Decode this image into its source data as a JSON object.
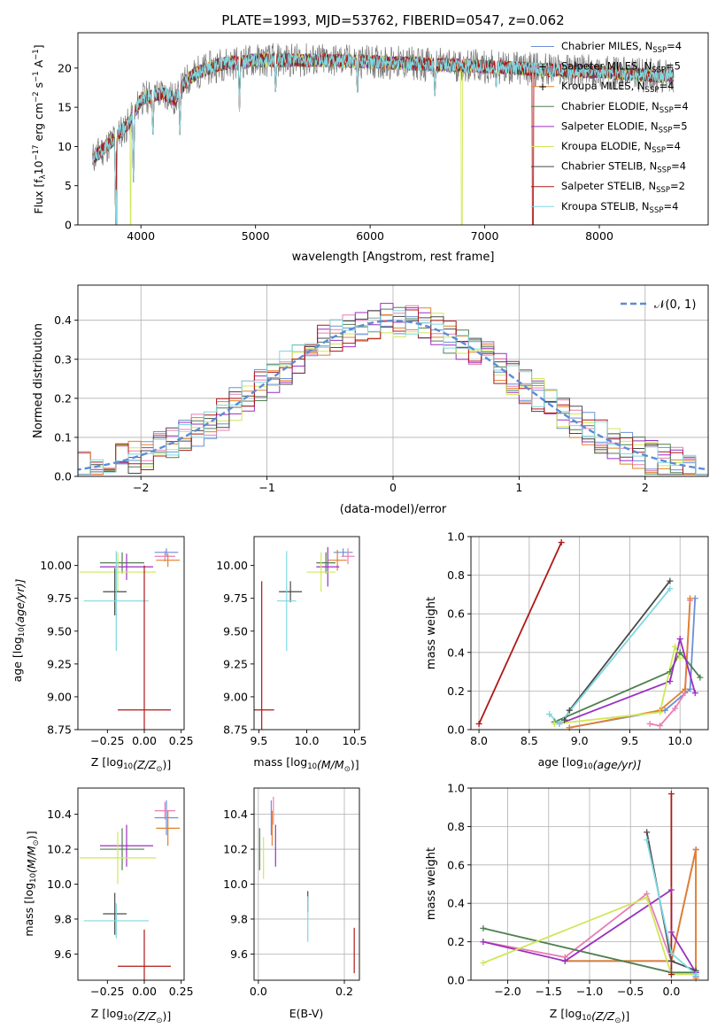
{
  "colors": {
    "chabrier_miles": "#6b8fd6",
    "salpeter_miles": "#e87eb5",
    "kroupa_miles": "#e0802e",
    "chabrier_elodie": "#4f7f4f",
    "salpeter_elodie": "#9b2fbf",
    "kroupa_elodie": "#cfe85a",
    "chabrier_stelib": "#4a4a4a",
    "salpeter_stelib": "#b01818",
    "kroupa_stelib": "#7fd8e0",
    "data": "#777777"
  },
  "chart_data": [
    {
      "type": "line",
      "title": "PLATE=1993, MJD=53762, FIBERID=0547, z=0.062",
      "xlabel": "wavelength [Angstrom, rest frame]",
      "ylabel_parts": [
        "Flux [f",
        "λ",
        "10",
        "−17",
        " erg cm",
        "−2",
        " s",
        "−1",
        " A",
        "−1",
        "]"
      ],
      "xlim": [
        3450,
        8950
      ],
      "ylim": [
        0,
        24.5
      ],
      "xticks": [
        4000,
        5000,
        6000,
        7000,
        8000
      ],
      "yticks": [
        0,
        5,
        10,
        15,
        20
      ],
      "legend_position": "top-right",
      "legend": [
        {
          "pre": "Chabrier MILES, N",
          "sub": "SSP",
          "post": "=4",
          "color": "chabrier_miles",
          "marker": ""
        },
        {
          "pre": "Salpeter MILES, N",
          "sub": "SSP",
          "post": "=5",
          "color": "salpeter_miles",
          "marker": "+"
        },
        {
          "pre": "Kroupa MILES, N",
          "sub": "SSP",
          "post": "=4",
          "color": "kroupa_miles",
          "marker": "+"
        },
        {
          "pre": "Chabrier ELODIE, N",
          "sub": "SSP",
          "post": "=4",
          "color": "chabrier_elodie",
          "marker": ""
        },
        {
          "pre": "Salpeter ELODIE, N",
          "sub": "SSP",
          "post": "=5",
          "color": "salpeter_elodie",
          "marker": ""
        },
        {
          "pre": "Kroupa ELODIE, N",
          "sub": "SSP",
          "post": "=4",
          "color": "kroupa_elodie",
          "marker": ""
        },
        {
          "pre": "Chabrier STELIB, N",
          "sub": "SSP",
          "post": "=4",
          "color": "chabrier_stelib",
          "marker": ""
        },
        {
          "pre": "Salpeter STELIB, N",
          "sub": "SSP",
          "post": "=2",
          "color": "salpeter_stelib",
          "marker": ""
        },
        {
          "pre": "Kroupa STELIB, N",
          "sub": "SSP",
          "post": "=4",
          "color": "kroupa_stelib",
          "marker": ""
        }
      ],
      "continuum": {
        "x": [
          3580,
          3700,
          3800,
          3900,
          4000,
          4100,
          4200,
          4300,
          4400,
          4500,
          4700,
          5000,
          5300,
          5600,
          6000,
          6500,
          7000,
          7500,
          8000,
          8500,
          8650
        ],
        "y": [
          8.5,
          10.0,
          11.5,
          13.0,
          16.0,
          16.5,
          16.8,
          16.0,
          18.5,
          19.5,
          20.5,
          21.0,
          21.0,
          21.0,
          20.8,
          20.5,
          20.2,
          19.8,
          19.5,
          19.0,
          19.0
        ]
      },
      "dips": [
        {
          "x": 3780,
          "y": 0
        },
        {
          "x": 3935,
          "y": 4.5
        },
        {
          "x": 4105,
          "y": 11.0
        },
        {
          "x": 4340,
          "y": 11.5
        },
        {
          "x": 4860,
          "y": 14.5
        },
        {
          "x": 5175,
          "y": 16.5
        },
        {
          "x": 5890,
          "y": 16.0
        },
        {
          "x": 6565,
          "y": 16.0
        },
        {
          "x": 7100,
          "y": 17.5
        }
      ],
      "model_drops": [
        {
          "series": "kroupa_elodie",
          "x": 3910,
          "y": 0
        },
        {
          "series": "kroupa_elodie",
          "x": 6800,
          "y": 0
        },
        {
          "series": "salpeter_stelib",
          "x": 7420,
          "y": 0
        },
        {
          "series": "kroupa_stelib",
          "x": 3790,
          "y": 0
        }
      ]
    },
    {
      "type": "histogram",
      "xlabel": "(data-model)/error",
      "ylabel": "Normed distribution",
      "xlim": [
        -2.5,
        2.5
      ],
      "ylim": [
        0,
        0.49
      ],
      "xticks": [
        -2,
        -1,
        0,
        1,
        2
      ],
      "yticks": [
        0.0,
        0.1,
        0.2,
        0.3,
        0.4
      ],
      "grid": true,
      "legend_position": "top-right",
      "legend_label": "𝒩(0, 1)",
      "bin_width": 0.1,
      "normal_curve": {
        "mean": 0,
        "sigma": 1,
        "color": "#5b8cd6"
      },
      "series": [
        {
          "color": "chabrier_miles",
          "seed": 1
        },
        {
          "color": "salpeter_miles",
          "seed": 2
        },
        {
          "color": "kroupa_miles",
          "seed": 3
        },
        {
          "color": "chabrier_elodie",
          "seed": 4
        },
        {
          "color": "salpeter_elodie",
          "seed": 5
        },
        {
          "color": "kroupa_elodie",
          "seed": 6
        },
        {
          "color": "chabrier_stelib",
          "seed": 7
        },
        {
          "color": "salpeter_stelib",
          "seed": 8
        },
        {
          "color": "kroupa_stelib",
          "seed": 9
        }
      ]
    },
    {
      "type": "errorbar",
      "xlabel_parts": [
        "Z [log",
        "10",
        "(Z/Z",
        "⊙",
        ")]"
      ],
      "ylabel_parts": [
        "age  [log",
        "10",
        "(age/yr)]"
      ],
      "xlim": [
        -0.45,
        0.27
      ],
      "ylim": [
        8.75,
        10.22
      ],
      "xticks": [
        -0.25,
        0.0,
        0.25
      ],
      "xtick_labels": [
        "−0.25",
        "0.00",
        "0.25"
      ],
      "yticks": [
        8.75,
        9.0,
        9.25,
        9.5,
        9.75,
        10.0
      ],
      "yticklabels": [
        "8.75",
        "9.00",
        "9.25",
        "9.50",
        "9.75",
        "10.00"
      ],
      "points": [
        {
          "color": "chabrier_miles",
          "x": 0.15,
          "xerr": 0.08,
          "y": 10.1,
          "yerr": 0.03
        },
        {
          "color": "salpeter_miles",
          "x": 0.14,
          "xerr": 0.07,
          "y": 10.07,
          "yerr": 0.04
        },
        {
          "color": "kroupa_miles",
          "x": 0.16,
          "xerr": 0.08,
          "y": 10.04,
          "yerr": 0.05
        },
        {
          "color": "chabrier_elodie",
          "x": -0.15,
          "xerr": 0.15,
          "y": 10.02,
          "yerr": 0.08
        },
        {
          "color": "salpeter_elodie",
          "x": -0.12,
          "xerr": 0.18,
          "y": 9.99,
          "yerr": 0.1
        },
        {
          "color": "kroupa_elodie",
          "x": -0.18,
          "xerr": 0.26,
          "y": 9.95,
          "yerr": 0.15
        },
        {
          "color": "chabrier_stelib",
          "x": -0.2,
          "xerr": 0.08,
          "y": 9.8,
          "yerr": 0.18
        },
        {
          "color": "kroupa_stelib",
          "x": -0.19,
          "xerr": 0.22,
          "y": 9.73,
          "yerr": 0.38
        },
        {
          "color": "salpeter_stelib",
          "x": 0.0,
          "xerr": 0.18,
          "y": 8.9,
          "yerr": 1.1
        }
      ]
    },
    {
      "type": "errorbar",
      "xlabel_parts": [
        "mass [log",
        "10",
        "(M/M",
        "⊙",
        ")]"
      ],
      "xlim": [
        9.45,
        10.55
      ],
      "ylim": [
        8.75,
        10.22
      ],
      "xticks": [
        9.5,
        10.0,
        10.5
      ],
      "xtick_labels": [
        "9.5",
        "10.0",
        "10.5"
      ],
      "yticks": [
        8.75,
        9.0,
        9.25,
        9.5,
        9.75,
        10.0
      ],
      "yticklabels": [
        "8.75",
        "9.00",
        "9.25",
        "9.50",
        "9.75",
        "10.00"
      ],
      "points": [
        {
          "color": "chabrier_miles",
          "x": 10.38,
          "xerr": 0.1,
          "y": 10.1,
          "yerr": 0.03
        },
        {
          "color": "salpeter_miles",
          "x": 10.43,
          "xerr": 0.07,
          "y": 10.07,
          "yerr": 0.06
        },
        {
          "color": "kroupa_miles",
          "x": 10.32,
          "xerr": 0.1,
          "y": 10.04,
          "yerr": 0.08
        },
        {
          "color": "chabrier_elodie",
          "x": 10.2,
          "xerr": 0.1,
          "y": 10.02,
          "yerr": 0.08
        },
        {
          "color": "salpeter_elodie",
          "x": 10.22,
          "xerr": 0.12,
          "y": 9.99,
          "yerr": 0.15
        },
        {
          "color": "kroupa_elodie",
          "x": 10.15,
          "xerr": 0.15,
          "y": 9.95,
          "yerr": 0.15
        },
        {
          "color": "chabrier_stelib",
          "x": 9.83,
          "xerr": 0.12,
          "y": 9.8,
          "yerr": 0.08
        },
        {
          "color": "kroupa_stelib",
          "x": 9.79,
          "xerr": 0.1,
          "y": 9.73,
          "yerr": 0.38
        },
        {
          "color": "salpeter_stelib",
          "x": 9.53,
          "xerr": 0.13,
          "y": 8.9,
          "yerr": 0.98
        }
      ]
    },
    {
      "type": "line",
      "xlabel_parts": [
        "age  [log",
        "10",
        "(age/yr)]"
      ],
      "ylabel": "mass weight",
      "xlim": [
        7.92,
        10.28
      ],
      "ylim": [
        0,
        1.0
      ],
      "xticks": [
        8.0,
        8.5,
        9.0,
        9.5,
        10.0
      ],
      "xtick_labels": [
        "8.0",
        "8.5",
        "9.0",
        "9.5",
        "10.0"
      ],
      "yticks": [
        0.0,
        0.2,
        0.4,
        0.6,
        0.8,
        1.0
      ],
      "yticklabels": [
        "0.0",
        "0.2",
        "0.4",
        "0.6",
        "0.8",
        "1.0"
      ],
      "grid": true,
      "series": [
        {
          "color": "chabrier_miles",
          "x": [
            8.9,
            9.85,
            10.1,
            10.15
          ],
          "y": [
            0.01,
            0.1,
            0.21,
            0.68
          ]
        },
        {
          "color": "salpeter_miles",
          "x": [
            9.7,
            9.8,
            9.95,
            10.05,
            10.1
          ],
          "y": [
            0.03,
            0.02,
            0.11,
            0.19,
            0.67
          ]
        },
        {
          "color": "kroupa_miles",
          "x": [
            8.9,
            9.8,
            10.05,
            10.1
          ],
          "y": [
            0.01,
            0.1,
            0.21,
            0.68
          ]
        },
        {
          "color": "chabrier_elodie",
          "x": [
            8.75,
            9.9,
            10.0,
            10.2
          ],
          "y": [
            0.04,
            0.3,
            0.4,
            0.27
          ]
        },
        {
          "color": "salpeter_elodie",
          "x": [
            8.8,
            9.9,
            10.0,
            10.15
          ],
          "y": [
            0.03,
            0.25,
            0.47,
            0.19
          ]
        },
        {
          "color": "kroupa_elodie",
          "x": [
            8.75,
            9.8,
            9.95,
            10.0
          ],
          "y": [
            0.03,
            0.09,
            0.43,
            0.37
          ]
        },
        {
          "color": "chabrier_stelib",
          "x": [
            8.85,
            8.9,
            9.9
          ],
          "y": [
            0.05,
            0.1,
            0.77
          ]
        },
        {
          "color": "salpeter_stelib",
          "x": [
            8.0,
            8.82
          ],
          "y": [
            0.03,
            0.97
          ]
        },
        {
          "color": "kroupa_stelib",
          "x": [
            8.7,
            8.8,
            9.9
          ],
          "y": [
            0.08,
            0.03,
            0.73
          ]
        }
      ]
    },
    {
      "type": "errorbar",
      "xlabel_parts": [
        "Z [log",
        "10",
        "(Z/Z",
        "⊙",
        ")]"
      ],
      "ylabel_parts": [
        "mass [log",
        "10",
        "(M/M",
        "⊙",
        ")]"
      ],
      "xlim": [
        -0.45,
        0.27
      ],
      "ylim": [
        9.45,
        10.55
      ],
      "xticks": [
        -0.25,
        0.0,
        0.25
      ],
      "xtick_labels": [
        "−0.25",
        "0.00",
        "0.25"
      ],
      "yticks": [
        9.6,
        9.8,
        10.0,
        10.2,
        10.4
      ],
      "yticklabels": [
        "9.6",
        "9.8",
        "10.0",
        "10.2",
        "10.4"
      ],
      "points": [
        {
          "color": "chabrier_miles",
          "x": 0.15,
          "xerr": 0.08,
          "y": 10.38,
          "yerr": 0.1
        },
        {
          "color": "salpeter_miles",
          "x": 0.14,
          "xerr": 0.07,
          "y": 10.42,
          "yerr": 0.05
        },
        {
          "color": "kroupa_miles",
          "x": 0.16,
          "xerr": 0.08,
          "y": 10.32,
          "yerr": 0.1
        },
        {
          "color": "chabrier_elodie",
          "x": -0.15,
          "xerr": 0.15,
          "y": 10.2,
          "yerr": 0.12
        },
        {
          "color": "salpeter_elodie",
          "x": -0.12,
          "xerr": 0.18,
          "y": 10.22,
          "yerr": 0.12
        },
        {
          "color": "kroupa_elodie",
          "x": -0.18,
          "xerr": 0.26,
          "y": 10.15,
          "yerr": 0.15
        },
        {
          "color": "chabrier_stelib",
          "x": -0.2,
          "xerr": 0.08,
          "y": 9.83,
          "yerr": 0.12
        },
        {
          "color": "kroupa_stelib",
          "x": -0.19,
          "xerr": 0.22,
          "y": 9.79,
          "yerr": 0.1
        },
        {
          "color": "salpeter_stelib",
          "x": 0.0,
          "xerr": 0.18,
          "y": 9.53,
          "yerr": 0.21
        }
      ]
    },
    {
      "type": "errorbar",
      "xlabel": "E(B-V)",
      "xlim": [
        -0.01,
        0.235
      ],
      "ylim": [
        9.45,
        10.55
      ],
      "xticks": [
        0.0,
        0.2
      ],
      "xtick_labels": [
        "0.0",
        "0.2"
      ],
      "yticks": [
        9.6,
        9.8,
        10.0,
        10.2,
        10.4
      ],
      "yticklabels": [
        "9.6",
        "9.8",
        "10.0",
        "10.2",
        "10.4"
      ],
      "grid": true,
      "points": [
        {
          "color": "chabrier_miles",
          "x": 0.03,
          "xerr": 0,
          "y": 10.38,
          "yerr": 0.1
        },
        {
          "color": "salpeter_miles",
          "x": 0.035,
          "xerr": 0,
          "y": 10.42,
          "yerr": 0.08
        },
        {
          "color": "kroupa_miles",
          "x": 0.032,
          "xerr": 0,
          "y": 10.32,
          "yerr": 0.1
        },
        {
          "color": "chabrier_elodie",
          "x": 0.003,
          "xerr": 0,
          "y": 10.2,
          "yerr": 0.12
        },
        {
          "color": "salpeter_elodie",
          "x": 0.04,
          "xerr": 0,
          "y": 10.22,
          "yerr": 0.12
        },
        {
          "color": "kroupa_elodie",
          "x": 0.012,
          "xerr": 0,
          "y": 10.15,
          "yerr": 0.12
        },
        {
          "color": "chabrier_stelib",
          "x": 0.115,
          "xerr": 0,
          "y": 9.9,
          "yerr": 0.06
        },
        {
          "color": "kroupa_stelib",
          "x": 0.115,
          "xerr": 0,
          "y": 9.8,
          "yerr": 0.13
        },
        {
          "color": "salpeter_stelib",
          "x": 0.223,
          "xerr": 0,
          "y": 9.62,
          "yerr": 0.13
        }
      ]
    },
    {
      "type": "line",
      "xlabel_parts": [
        "Z [log",
        "10",
        "(Z/Z",
        "⊙",
        ")]"
      ],
      "ylabel": "mass weight",
      "xlim": [
        -2.45,
        0.45
      ],
      "ylim": [
        0,
        1.0
      ],
      "xticks": [
        -2.0,
        -1.5,
        -1.0,
        -0.5,
        0.0
      ],
      "xtick_labels": [
        "−2.0",
        "−1.5",
        "−1.0",
        "−0.5",
        "0.0"
      ],
      "yticks": [
        0.0,
        0.2,
        0.4,
        0.6,
        0.8,
        1.0
      ],
      "yticklabels": [
        "0.0",
        "0.2",
        "0.4",
        "0.6",
        "0.8",
        "1.0"
      ],
      "grid": true,
      "series": [
        {
          "color": "chabrier_miles",
          "x": [
            -1.3,
            0.0,
            0.3,
            0.3
          ],
          "y": [
            0.1,
            0.1,
            0.68,
            0.02
          ]
        },
        {
          "color": "salpeter_miles",
          "x": [
            -2.3,
            -1.3,
            -0.3,
            0.0,
            0.3
          ],
          "y": [
            0.2,
            0.12,
            0.45,
            0.1,
            0.68
          ]
        },
        {
          "color": "kroupa_miles",
          "x": [
            -1.3,
            0.0,
            0.3,
            0.3
          ],
          "y": [
            0.1,
            0.1,
            0.68,
            0.01
          ]
        },
        {
          "color": "chabrier_elodie",
          "x": [
            -2.3,
            0.0,
            0.3
          ],
          "y": [
            0.27,
            0.04,
            0.04
          ]
        },
        {
          "color": "salpeter_elodie",
          "x": [
            -2.3,
            -1.3,
            0.0,
            0.0,
            0.3
          ],
          "y": [
            0.2,
            0.1,
            0.47,
            0.25,
            0.04
          ]
        },
        {
          "color": "kroupa_elodie",
          "x": [
            -2.3,
            -0.3,
            0.0,
            0.3
          ],
          "y": [
            0.09,
            0.43,
            0.03,
            0.03
          ]
        },
        {
          "color": "chabrier_stelib",
          "x": [
            -0.3,
            0.0,
            0.3
          ],
          "y": [
            0.77,
            0.1,
            0.05
          ]
        },
        {
          "color": "salpeter_stelib",
          "x": [
            0.0,
            0.0
          ],
          "y": [
            0.97,
            0.03
          ]
        },
        {
          "color": "kroupa_stelib",
          "x": [
            -0.3,
            0.0,
            0.3
          ],
          "y": [
            0.73,
            0.14,
            0.03
          ]
        }
      ]
    }
  ]
}
